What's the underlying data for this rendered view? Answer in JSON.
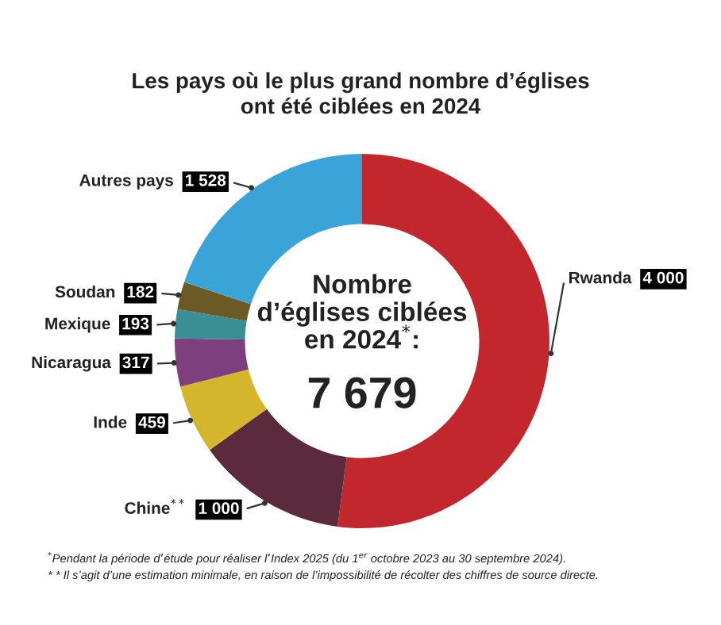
{
  "chart_data": {
    "type": "donut",
    "title": "Les pays où le plus grand nombre d’églises\nont été ciblées en 2024",
    "categories": [
      "Rwanda",
      "Chine$^{**}$",
      "Inde",
      "Nicaragua",
      "Mexique",
      "Soudan",
      "Autres pays"
    ],
    "values": [
      4000,
      1000,
      459,
      317,
      193,
      182,
      1528
    ],
    "value_labels": [
      "4 000",
      "1 000",
      "459",
      "317",
      "193",
      "182",
      "1 528"
    ],
    "colors": [
      "#c1272d",
      "#5b2a3c",
      "#d4b52b",
      "#7e3f7e",
      "#3a8f94",
      "#6b5a23",
      "#3aa3d8"
    ],
    "annotations": [
      "Nombre\nd’églises ciblées\nen 2024$^{*}$:",
      "7 679",
      "$^{*}$Pendant la période d’étude pour réaliser l’Index 2025 (du 1$^{er}$ octobre 2023 au 30 septembre 2024).",
      "* * Il s’agit d’une estimation minimale, en raison de l’impossibilité de récolter des chiffres de source directe."
    ]
  }
}
